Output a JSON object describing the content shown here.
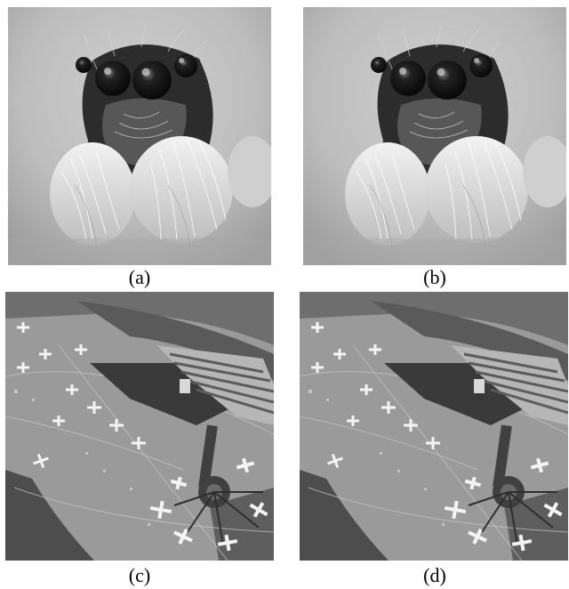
{
  "panels": [
    {
      "id": "a",
      "caption": "(a)",
      "subject": "jumping-spider"
    },
    {
      "id": "b",
      "caption": "(b)",
      "subject": "jumping-spider"
    },
    {
      "id": "c",
      "caption": "(c)",
      "subject": "airport-aerial"
    },
    {
      "id": "d",
      "caption": "(d)",
      "subject": "airport-aerial"
    }
  ]
}
